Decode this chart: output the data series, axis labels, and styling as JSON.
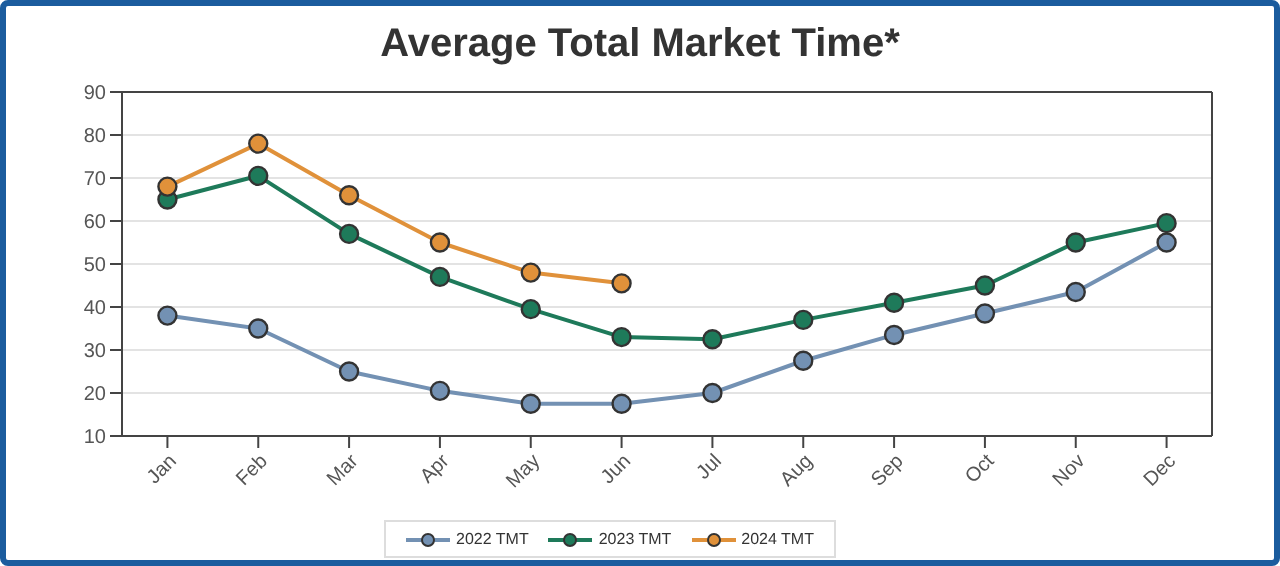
{
  "chart_data": {
    "type": "line",
    "title": "Average Total Market Time*",
    "categories": [
      "Jan",
      "Feb",
      "Mar",
      "Apr",
      "May",
      "Jun",
      "Jul",
      "Aug",
      "Sep",
      "Oct",
      "Nov",
      "Dec"
    ],
    "series": [
      {
        "name": "2022 TMT",
        "color": "#7391b3",
        "values": [
          38,
          35,
          25,
          20.5,
          17.5,
          17.5,
          20,
          27.5,
          33.5,
          38.5,
          43.5,
          55
        ]
      },
      {
        "name": "2023 TMT",
        "color": "#1e7a5a",
        "values": [
          65,
          70.5,
          57,
          47,
          39.5,
          33,
          32.5,
          37,
          41,
          45,
          55,
          59.5
        ]
      },
      {
        "name": "2024 TMT",
        "color": "#e0913a",
        "values": [
          68,
          78,
          66,
          55,
          48,
          45.5,
          null,
          null,
          null,
          null,
          null,
          null
        ]
      }
    ],
    "ylim": [
      10,
      90
    ],
    "yticks": [
      10,
      20,
      30,
      40,
      50,
      60,
      70,
      80,
      90
    ],
    "grid": "y",
    "legend": "bottom",
    "marker": "circle",
    "line_style": "solid"
  }
}
